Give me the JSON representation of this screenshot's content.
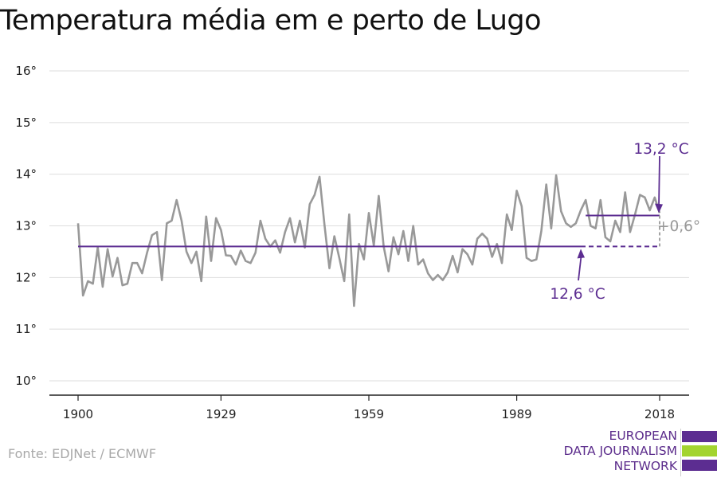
{
  "chart_data": {
    "type": "line",
    "title": "Temperatura média em e perto de Lugo",
    "xlim": [
      1900,
      2018
    ],
    "ylim": [
      10,
      16
    ],
    "y_ticks": [
      10,
      11,
      12,
      13,
      14,
      15,
      16
    ],
    "y_tick_labels": [
      "10°",
      "11°",
      "12°",
      "13°",
      "14°",
      "15°",
      "16°"
    ],
    "x_ticks": [
      1900,
      1929,
      1959,
      1989,
      2018
    ],
    "x_tick_labels": [
      "1900",
      "1929",
      "1959",
      "1989",
      "2018"
    ],
    "grid": true,
    "series": [
      {
        "color": "#999999",
        "x": [
          1900,
          1901,
          1902,
          1903,
          1904,
          1905,
          1906,
          1907,
          1908,
          1909,
          1910,
          1911,
          1912,
          1913,
          1914,
          1915,
          1916,
          1917,
          1918,
          1919,
          1920,
          1921,
          1922,
          1923,
          1924,
          1925,
          1926,
          1927,
          1928,
          1929,
          1930,
          1931,
          1932,
          1933,
          1934,
          1935,
          1936,
          1937,
          1938,
          1939,
          1940,
          1941,
          1942,
          1943,
          1944,
          1945,
          1946,
          1947,
          1948,
          1949,
          1950,
          1951,
          1952,
          1953,
          1954,
          1955,
          1956,
          1957,
          1958,
          1959,
          1960,
          1961,
          1962,
          1963,
          1964,
          1965,
          1966,
          1967,
          1968,
          1969,
          1970,
          1971,
          1972,
          1973,
          1974,
          1975,
          1976,
          1977,
          1978,
          1979,
          1980,
          1981,
          1982,
          1983,
          1984,
          1985,
          1986,
          1987,
          1988,
          1989,
          1990,
          1991,
          1992,
          1993,
          1994,
          1995,
          1996,
          1997,
          1998,
          1999,
          2000,
          2001,
          2002,
          2003,
          2004,
          2005,
          2006,
          2007,
          2008,
          2009,
          2010,
          2011,
          2012,
          2013,
          2014,
          2015,
          2016,
          2017,
          2018
        ],
        "values": [
          13.05,
          11.65,
          11.93,
          11.88,
          12.58,
          11.82,
          12.55,
          12.02,
          12.38,
          11.85,
          11.88,
          12.28,
          12.28,
          12.08,
          12.48,
          12.82,
          12.88,
          11.95,
          13.05,
          13.1,
          13.5,
          13.1,
          12.5,
          12.28,
          12.5,
          11.93,
          13.18,
          12.32,
          13.15,
          12.92,
          12.43,
          12.42,
          12.25,
          12.52,
          12.32,
          12.28,
          12.48,
          13.1,
          12.75,
          12.6,
          12.72,
          12.48,
          12.88,
          13.15,
          12.68,
          13.1,
          12.58,
          13.42,
          13.6,
          13.95,
          13.02,
          12.18,
          12.8,
          12.38,
          11.93,
          13.22,
          11.45,
          12.65,
          12.35,
          13.25,
          12.62,
          13.58,
          12.6,
          12.12,
          12.78,
          12.45,
          12.9,
          12.32,
          13.0,
          12.25,
          12.35,
          12.08,
          11.95,
          12.05,
          11.95,
          12.1,
          12.42,
          12.1,
          12.55,
          12.45,
          12.25,
          12.75,
          12.85,
          12.75,
          12.4,
          12.65,
          12.28,
          13.22,
          12.92,
          13.68,
          13.38,
          12.38,
          12.32,
          12.35,
          12.9,
          13.8,
          12.95,
          13.98,
          13.28,
          13.05,
          12.98,
          13.05,
          13.3,
          13.5,
          13.0,
          12.95,
          13.5,
          12.78,
          12.7,
          13.1,
          12.88,
          13.65,
          12.88,
          13.22,
          13.6,
          13.55,
          13.3,
          13.55,
          13.25
        ]
      },
      {
        "name": "",
        "color": "#5c2d91",
        "x": [
          1900,
          2002
        ],
        "values": [
          12.6,
          12.6
        ]
      },
      {
        "color": "#5c2d91",
        "x": [
          2002,
          2018
        ],
        "values": [
          12.6,
          12.6
        ],
        "dashed": true
      },
      {
        "color": "#5c2d91",
        "x": [
          2003,
          2018
        ],
        "values": [
          13.2,
          13.2
        ]
      }
    ],
    "annotations": [
      {
        "text": "13,2 °C",
        "x": 2018,
        "y": 13.2,
        "color": "#5c2d91"
      },
      {
        "text": "12,6 °C",
        "x": 2002,
        "y": 12.6,
        "color": "#5c2d91"
      },
      {
        "text": "+0,6°",
        "x": 2018,
        "y": 12.9,
        "color": "#999999"
      }
    ]
  },
  "source": "Fonte: EDJNet / ECMWF",
  "logo": {
    "lines": [
      "EUROPEAN",
      "DATA JOURNALISM",
      "NETWORK"
    ],
    "colors": [
      "#5c2d91",
      "#a3d42f",
      "#5c2d91"
    ]
  }
}
